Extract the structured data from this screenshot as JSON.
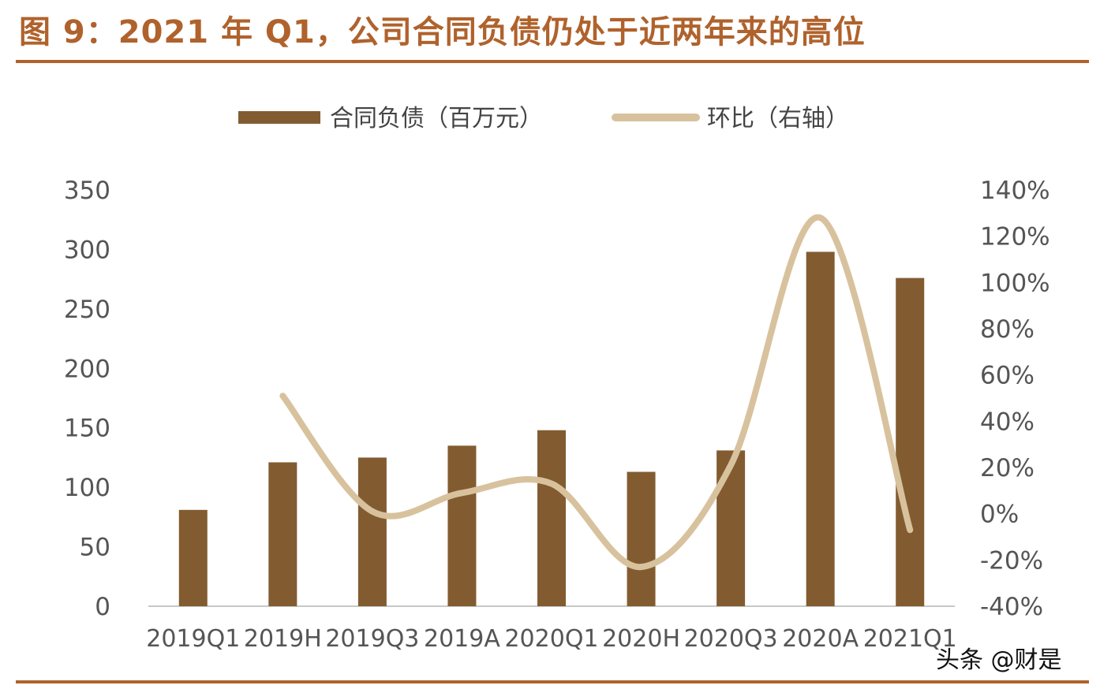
{
  "title": "图 9：2021 年 Q1，公司合同负债仍处于近两年来的高位",
  "watermark": "头条 @财是",
  "colors": {
    "title": "#b0622c",
    "bar": "#825c30",
    "line": "#d8c29e",
    "axis": "#c8c8c8",
    "tick_text": "#555555"
  },
  "chart_data": {
    "type": "bar",
    "categories": [
      "2019Q1",
      "2019H",
      "2019Q3",
      "2019A",
      "2020Q1",
      "2020H",
      "2020Q3",
      "2020A",
      "2021Q1"
    ],
    "series": [
      {
        "name": "合同负债（百万元）",
        "type": "bar",
        "axis": "left",
        "values": [
          81,
          121,
          125,
          135,
          148,
          113,
          131,
          298,
          276
        ]
      },
      {
        "name": "环比（右轴）",
        "type": "line",
        "axis": "right",
        "values": [
          null,
          51,
          1,
          9,
          13,
          -23,
          21,
          128,
          -7
        ]
      }
    ],
    "left_axis": {
      "ylim": [
        0,
        350
      ],
      "ticks": [
        "0",
        "50",
        "100",
        "150",
        "200",
        "250",
        "300",
        "350"
      ]
    },
    "right_axis": {
      "ylim": [
        -40,
        140
      ],
      "ticks": [
        "-40%",
        "-20%",
        "0%",
        "20%",
        "40%",
        "60%",
        "80%",
        "100%",
        "120%",
        "140%"
      ]
    },
    "legend_placement": "top-center",
    "grid": false
  }
}
